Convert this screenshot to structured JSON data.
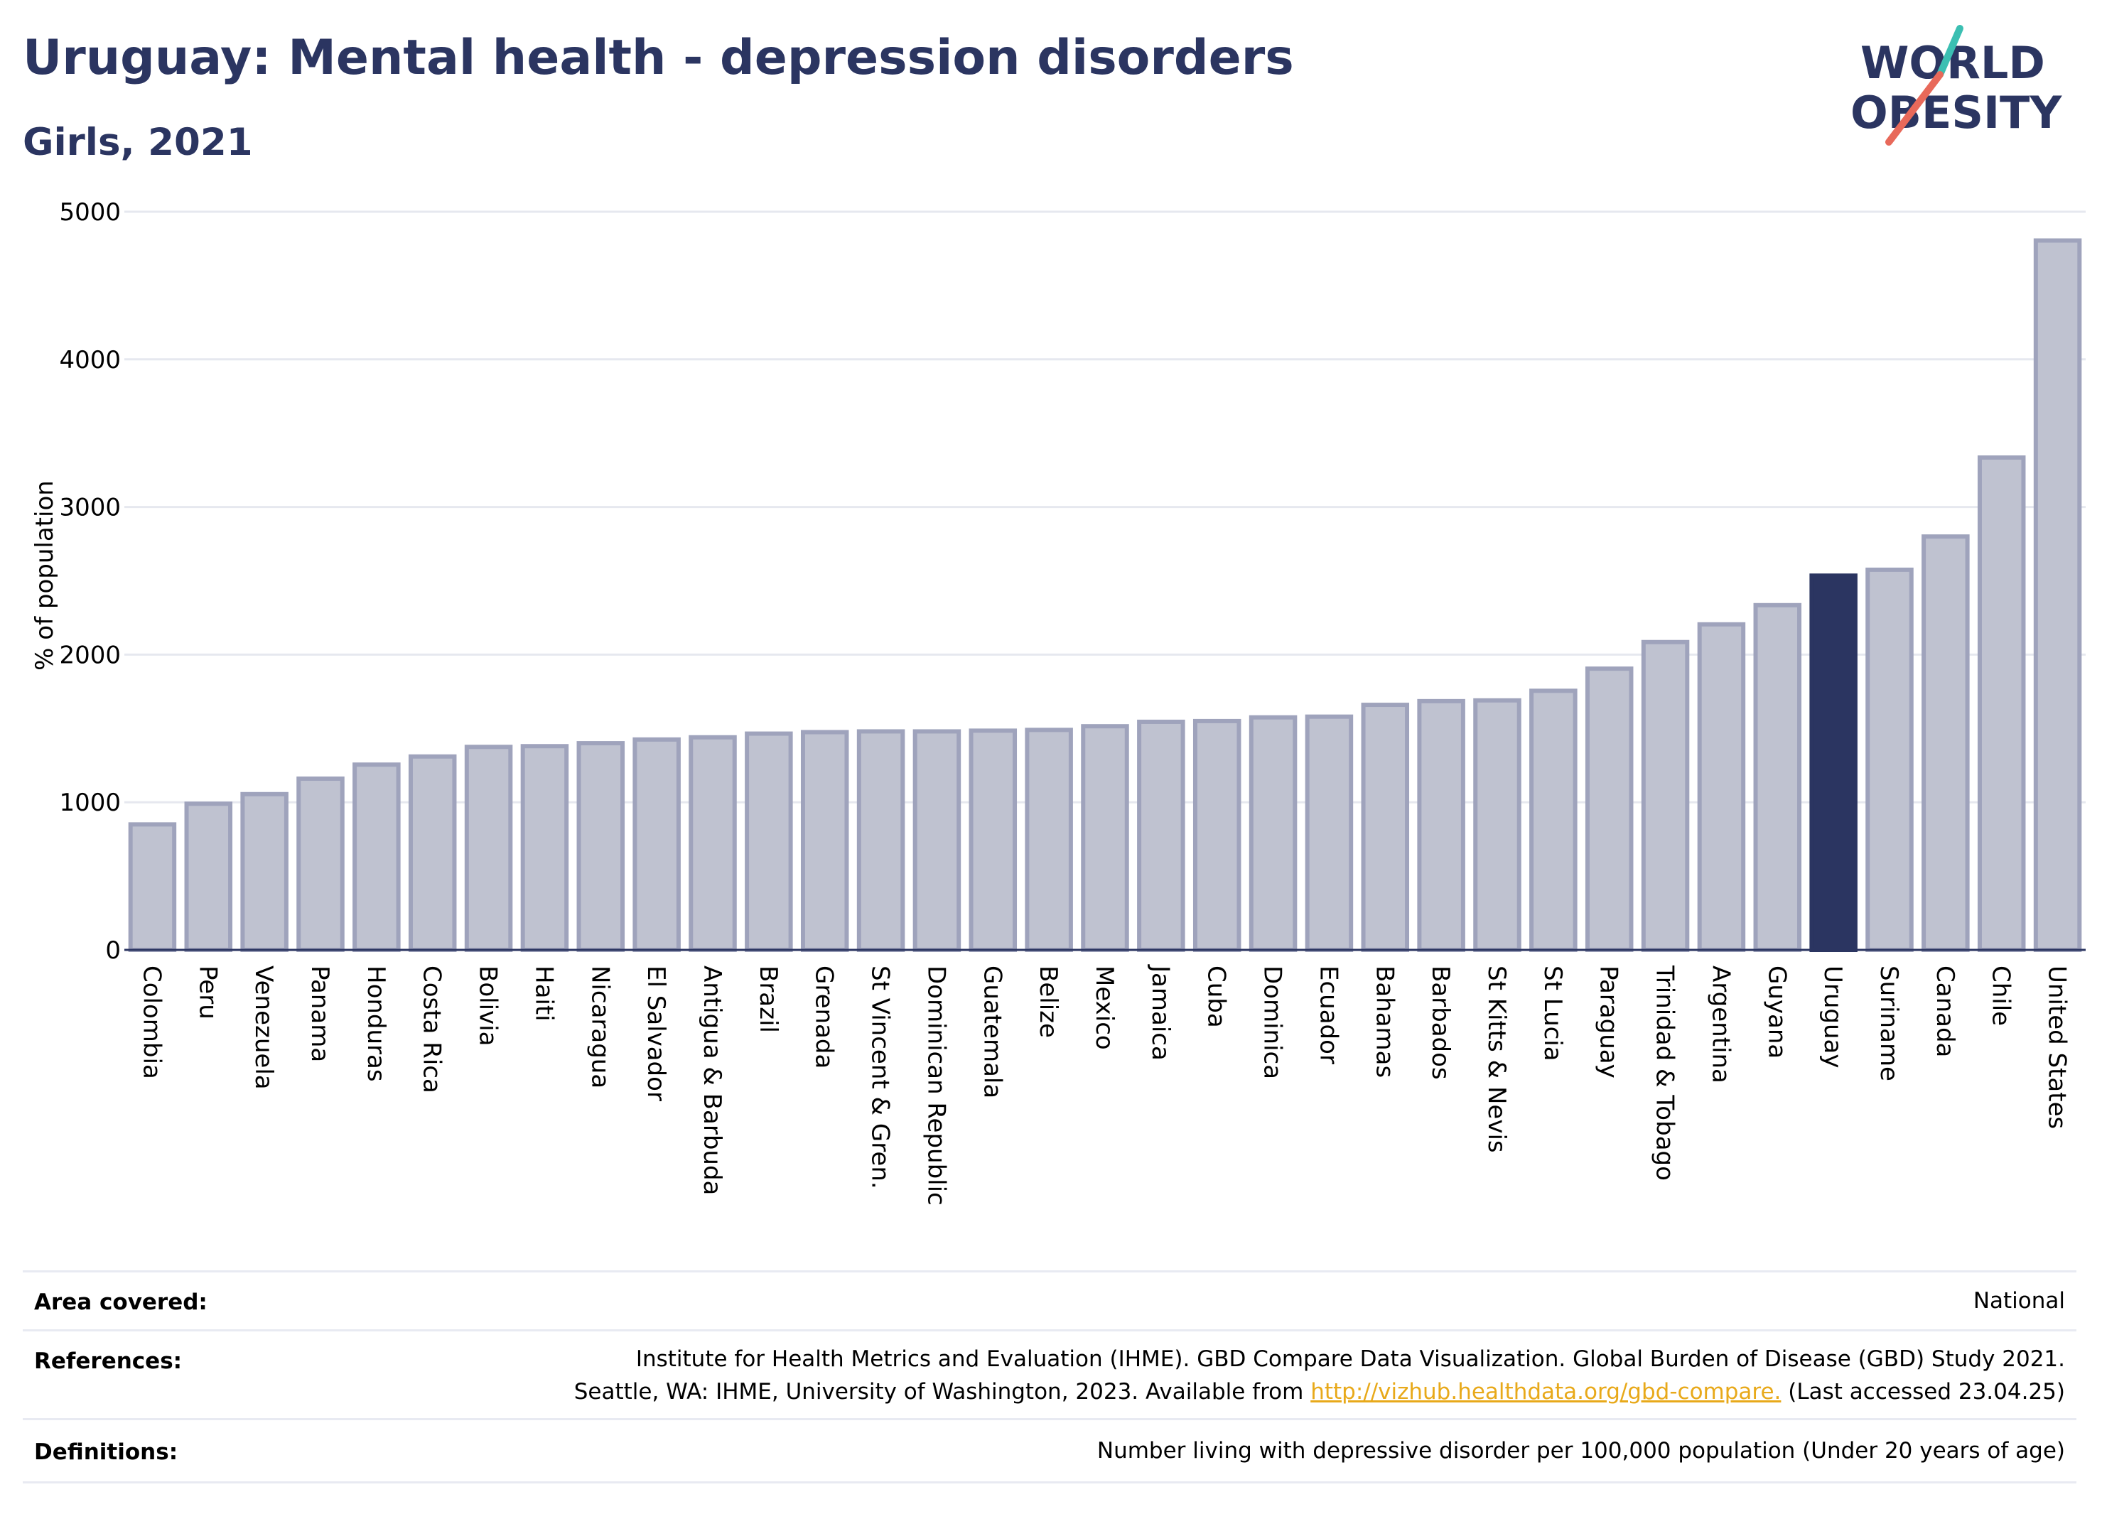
{
  "header": {
    "title": "Uruguay: Mental health - depression disorders",
    "subtitle": "Girls, 2021"
  },
  "logo": {
    "line1": "WORLD",
    "line2": "OBESITY",
    "slash_colors": [
      "#3bbfb2",
      "#e8695a"
    ]
  },
  "chart_data": {
    "type": "bar",
    "ylabel": "% of population",
    "ylim": [
      0,
      5000
    ],
    "yticks": [
      0,
      1000,
      2000,
      3000,
      4000,
      5000
    ],
    "grid": true,
    "highlight": "Uruguay",
    "colors": {
      "bar": "#bfc2d0",
      "bar_edge": "#9fa3bc",
      "highlight": "#2b3561"
    },
    "categories": [
      "Colombia",
      "Peru",
      "Venezuela",
      "Panama",
      "Honduras",
      "Costa Rica",
      "Bolivia",
      "Haiti",
      "Nicaragua",
      "El Salvador",
      "Antigua & Barbuda",
      "Brazil",
      "Grenada",
      "St Vincent & Gren.",
      "Dominican Republic",
      "Guatemala",
      "Belize",
      "Mexico",
      "Jamaica",
      "Cuba",
      "Dominica",
      "Ecuador",
      "Bahamas",
      "Barbados",
      "St Kitts & Nevis",
      "St Lucia",
      "Paraguay",
      "Trinidad & Tobago",
      "Argentina",
      "Guyana",
      "Uruguay",
      "Suriname",
      "Canada",
      "Chile",
      "United States"
    ],
    "values": [
      850,
      990,
      1055,
      1160,
      1255,
      1310,
      1375,
      1380,
      1400,
      1425,
      1440,
      1465,
      1475,
      1480,
      1480,
      1485,
      1490,
      1515,
      1545,
      1550,
      1575,
      1580,
      1660,
      1685,
      1690,
      1755,
      1905,
      2085,
      2205,
      2335,
      2535,
      2575,
      2800,
      3335,
      4805
    ]
  },
  "footer": {
    "area_label": "Area covered:",
    "area_value": "National",
    "references_label": "References:",
    "references_line1": "Institute for Health Metrics and Evaluation (IHME). GBD Compare Data Visualization. Global Burden of Disease (GBD) Study 2021.",
    "references_line2_pre": "Seattle, WA: IHME, University of Washington, 2023. Available from ",
    "references_link": "http://vizhub.healthdata.org/gbd-compare.",
    "references_line2_post": " (Last accessed 23.04.25)",
    "definitions_label": "Definitions:",
    "definitions_value": "Number living with depressive disorder per 100,000 population (Under 20 years of age)"
  }
}
